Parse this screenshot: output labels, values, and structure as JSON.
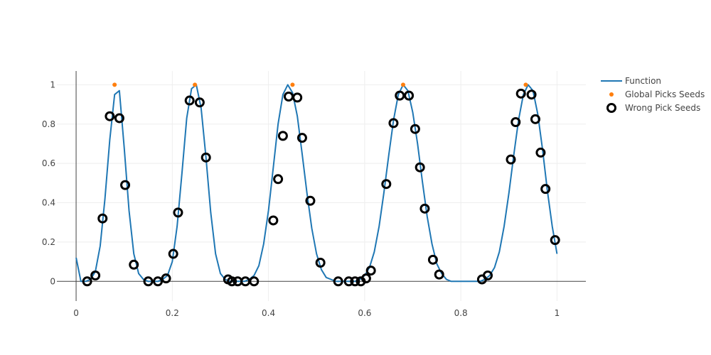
{
  "chart_data": {
    "type": "scatter",
    "title": "",
    "xlabel": "",
    "ylabel": "",
    "xlim": [
      -0.04,
      1.06
    ],
    "ylim": [
      -0.1,
      1.07
    ],
    "grid": true,
    "legend_position": "top-right",
    "x_ticks": [
      {
        "value": 0,
        "label": "0"
      },
      {
        "value": 0.2,
        "label": "0.2"
      },
      {
        "value": 0.4,
        "label": "0.4"
      },
      {
        "value": 0.6,
        "label": "0.6"
      },
      {
        "value": 0.8,
        "label": "0.8"
      },
      {
        "value": 1,
        "label": "1"
      }
    ],
    "y_ticks": [
      {
        "value": 0,
        "label": "0"
      },
      {
        "value": 0.2,
        "label": "0.2"
      },
      {
        "value": 0.4,
        "label": "0.4"
      },
      {
        "value": 0.6,
        "label": "0.6"
      },
      {
        "value": 0.8,
        "label": "0.8"
      },
      {
        "value": 1,
        "label": "1"
      }
    ],
    "series": [
      {
        "name": "Function",
        "kind": "line",
        "color": "#1f77b4",
        "x": [
          0,
          0.01,
          0.02,
          0.03,
          0.04,
          0.05,
          0.06,
          0.07,
          0.08,
          0.09,
          0.1,
          0.11,
          0.12,
          0.13,
          0.14,
          0.15,
          0.16,
          0.17,
          0.18,
          0.19,
          0.2,
          0.21,
          0.22,
          0.23,
          0.24,
          0.25,
          0.26,
          0.27,
          0.28,
          0.29,
          0.3,
          0.31,
          0.32,
          0.33,
          0.34,
          0.35,
          0.36,
          0.37,
          0.38,
          0.39,
          0.4,
          0.41,
          0.42,
          0.43,
          0.44,
          0.45,
          0.46,
          0.47,
          0.48,
          0.49,
          0.5,
          0.51,
          0.52,
          0.53,
          0.54,
          0.55,
          0.56,
          0.57,
          0.58,
          0.59,
          0.6,
          0.61,
          0.62,
          0.63,
          0.64,
          0.65,
          0.66,
          0.67,
          0.68,
          0.69,
          0.7,
          0.71,
          0.72,
          0.73,
          0.74,
          0.75,
          0.76,
          0.77,
          0.78,
          0.79,
          0.8,
          0.81,
          0.82,
          0.83,
          0.84,
          0.85,
          0.86,
          0.87,
          0.88,
          0.89,
          0.9,
          0.91,
          0.92,
          0.93,
          0.94,
          0.95,
          0.96,
          0.97,
          0.98,
          0.99,
          1
        ],
        "y": [
          0.12,
          0.0,
          0.0,
          0.01,
          0.05,
          0.18,
          0.42,
          0.72,
          0.95,
          0.97,
          0.68,
          0.36,
          0.14,
          0.04,
          0.01,
          0.0,
          0.0,
          0.0,
          0.01,
          0.03,
          0.1,
          0.28,
          0.55,
          0.83,
          0.98,
          1.0,
          0.88,
          0.63,
          0.35,
          0.14,
          0.04,
          0.01,
          0.0,
          0.0,
          0.0,
          0.0,
          0.01,
          0.03,
          0.08,
          0.19,
          0.36,
          0.58,
          0.8,
          0.95,
          1.0,
          0.96,
          0.84,
          0.65,
          0.45,
          0.27,
          0.14,
          0.06,
          0.02,
          0.01,
          0.0,
          0.0,
          0.0,
          0.0,
          0.0,
          0.01,
          0.03,
          0.07,
          0.15,
          0.28,
          0.45,
          0.64,
          0.82,
          0.95,
          1.0,
          0.97,
          0.86,
          0.7,
          0.51,
          0.33,
          0.19,
          0.09,
          0.04,
          0.01,
          0.0,
          0.0,
          0.0,
          0.0,
          0.0,
          0.0,
          0.0,
          0.01,
          0.03,
          0.07,
          0.15,
          0.28,
          0.45,
          0.64,
          0.82,
          0.95,
          1.0,
          0.97,
          0.85,
          0.67,
          0.46,
          0.28,
          0.14
        ]
      },
      {
        "name": "Global Picks Seeds",
        "kind": "markers",
        "color": "#ff7f0e",
        "x": [
          0.08,
          0.247,
          0.45,
          0.68,
          0.935
        ],
        "y": [
          1,
          1,
          1,
          1,
          1
        ]
      },
      {
        "name": "Wrong Pick Seeds",
        "kind": "markers-open",
        "color": "#000000",
        "x": [
          0.023,
          0.04,
          0.055,
          0.07,
          0.09,
          0.102,
          0.12,
          0.15,
          0.17,
          0.187,
          0.202,
          0.212,
          0.236,
          0.257,
          0.27,
          0.316,
          0.324,
          0.336,
          0.352,
          0.37,
          0.41,
          0.42,
          0.43,
          0.442,
          0.46,
          0.47,
          0.487,
          0.508,
          0.545,
          0.567,
          0.58,
          0.592,
          0.603,
          0.613,
          0.645,
          0.66,
          0.673,
          0.692,
          0.705,
          0.715,
          0.725,
          0.742,
          0.755,
          0.844,
          0.856,
          0.904,
          0.914,
          0.925,
          0.947,
          0.955,
          0.966,
          0.976,
          0.996
        ],
        "y": [
          0.0,
          0.03,
          0.32,
          0.84,
          0.83,
          0.49,
          0.085,
          0.0,
          0.0,
          0.015,
          0.14,
          0.35,
          0.92,
          0.91,
          0.63,
          0.01,
          0.0,
          0.0,
          0.0,
          0.0,
          0.31,
          0.52,
          0.74,
          0.94,
          0.935,
          0.73,
          0.41,
          0.095,
          0.0,
          0.0,
          0.0,
          0.0,
          0.015,
          0.055,
          0.495,
          0.805,
          0.945,
          0.945,
          0.775,
          0.58,
          0.37,
          0.11,
          0.035,
          0.01,
          0.03,
          0.62,
          0.81,
          0.955,
          0.95,
          0.825,
          0.655,
          0.47,
          0.21
        ]
      }
    ]
  }
}
